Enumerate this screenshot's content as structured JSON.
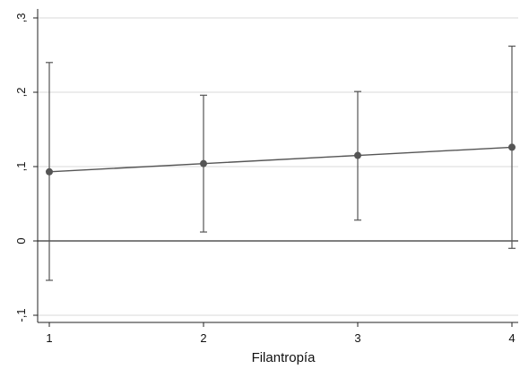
{
  "chart_data": {
    "type": "line",
    "xlabel": "Filantropía",
    "ylabel": "",
    "x": [
      1,
      2,
      3,
      4
    ],
    "xticks": [
      "1",
      "2",
      "3",
      "4"
    ],
    "xlim": [
      1,
      4
    ],
    "ylim": [
      -0.13,
      0.3
    ],
    "yticks": [
      -0.1,
      0,
      0.1,
      0.2,
      0.3
    ],
    "ytick_labels": [
      "-,1",
      "0",
      ",1",
      ",2",
      ",3"
    ],
    "reference_line": 0,
    "grid": true,
    "series": [
      {
        "values": [
          0.093,
          0.104,
          0.115,
          0.126
        ],
        "ci_lower": [
          -0.053,
          0.012,
          0.028,
          -0.01
        ],
        "ci_upper": [
          0.24,
          0.196,
          0.201,
          0.262
        ]
      }
    ],
    "colors": {
      "line": "#555555",
      "marker": "#555555",
      "grid": "#d9d9d9",
      "axis": "#222222"
    }
  }
}
